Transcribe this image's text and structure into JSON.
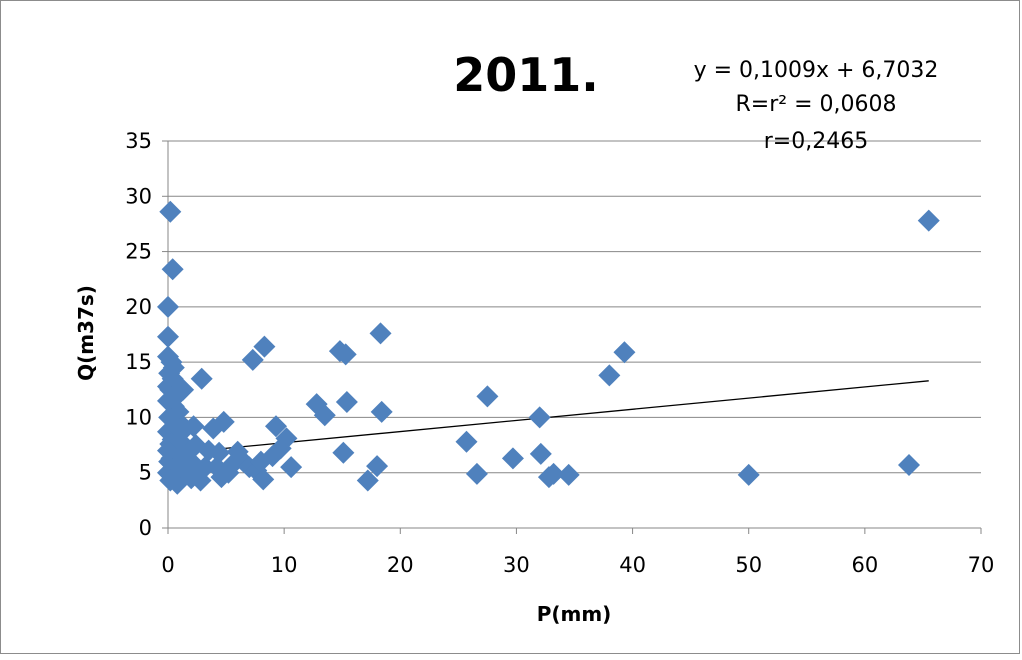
{
  "chart_data": {
    "type": "scatter",
    "title": "2011.",
    "xlabel": "P(mm)",
    "ylabel": "Q(m37s)",
    "xlim": [
      0,
      70
    ],
    "ylim": [
      0,
      35
    ],
    "x_ticks": [
      "0",
      "10",
      "20",
      "30",
      "40",
      "50",
      "60",
      "70"
    ],
    "y_ticks": [
      "0",
      "5",
      "10",
      "15",
      "20",
      "25",
      "30",
      "35"
    ],
    "grid": "horizontal",
    "legend": "none",
    "annotations": [
      "y = 0,1009x + 6,7032",
      "R=r² = 0,0608",
      "r=0,2465"
    ],
    "trendline": {
      "slope": 0.1009,
      "intercept": 6.7032,
      "x_range": [
        0,
        65.5
      ]
    },
    "marker_color": "#4f81bd",
    "points": [
      [
        0.2,
        28.6
      ],
      [
        0.4,
        23.4
      ],
      [
        0.0,
        20.0
      ],
      [
        0.0,
        17.3
      ],
      [
        0.0,
        15.5
      ],
      [
        0.3,
        15.0
      ],
      [
        0.5,
        14.5
      ],
      [
        0.1,
        14.0
      ],
      [
        0.4,
        13.5
      ],
      [
        0.7,
        13.0
      ],
      [
        0.2,
        12.5
      ],
      [
        0.8,
        12.0
      ],
      [
        0.0,
        11.5
      ],
      [
        0.5,
        11.0
      ],
      [
        0.9,
        10.5
      ],
      [
        0.1,
        10.0
      ],
      [
        0.6,
        9.5
      ],
      [
        0.3,
        9.0
      ],
      [
        0.0,
        8.7
      ],
      [
        0.8,
        8.3
      ],
      [
        0.4,
        8.0
      ],
      [
        0.2,
        7.6
      ],
      [
        0.9,
        7.3
      ],
      [
        0.0,
        7.0
      ],
      [
        0.6,
        6.7
      ],
      [
        0.3,
        6.3
      ],
      [
        0.1,
        6.0
      ],
      [
        0.7,
        5.7
      ],
      [
        0.4,
        5.3
      ],
      [
        0.0,
        5.0
      ],
      [
        0.5,
        4.6
      ],
      [
        0.2,
        4.3
      ],
      [
        0.8,
        4.0
      ],
      [
        0.0,
        12.8
      ],
      [
        0.3,
        11.8
      ],
      [
        0.6,
        9.9
      ],
      [
        1.0,
        8.9
      ],
      [
        1.0,
        7.9
      ],
      [
        1.1,
        6.5
      ],
      [
        1.1,
        5.5
      ],
      [
        1.3,
        12.5
      ],
      [
        1.5,
        9.0
      ],
      [
        1.6,
        7.0
      ],
      [
        1.8,
        5.5
      ],
      [
        2.0,
        6.0
      ],
      [
        2.0,
        4.5
      ],
      [
        2.2,
        9.2
      ],
      [
        2.4,
        7.5
      ],
      [
        2.6,
        5.0
      ],
      [
        2.8,
        4.3
      ],
      [
        2.9,
        13.5
      ],
      [
        3.2,
        5.5
      ],
      [
        3.5,
        7.0
      ],
      [
        3.9,
        9.0
      ],
      [
        4.2,
        5.5
      ],
      [
        4.4,
        6.8
      ],
      [
        4.6,
        4.6
      ],
      [
        4.8,
        9.6
      ],
      [
        5.2,
        5.0
      ],
      [
        5.6,
        5.8
      ],
      [
        6.0,
        6.9
      ],
      [
        6.5,
        6.0
      ],
      [
        7.0,
        5.5
      ],
      [
        7.3,
        15.2
      ],
      [
        7.6,
        5.2
      ],
      [
        8.0,
        6.0
      ],
      [
        8.3,
        16.4
      ],
      [
        8.2,
        4.4
      ],
      [
        9.0,
        6.5
      ],
      [
        9.3,
        9.2
      ],
      [
        9.7,
        7.2
      ],
      [
        10.2,
        8.1
      ],
      [
        10.6,
        5.5
      ],
      [
        12.8,
        11.2
      ],
      [
        13.5,
        10.2
      ],
      [
        14.8,
        16.0
      ],
      [
        15.3,
        15.7
      ],
      [
        15.1,
        6.8
      ],
      [
        15.4,
        11.4
      ],
      [
        17.2,
        4.3
      ],
      [
        18.0,
        5.6
      ],
      [
        18.3,
        17.6
      ],
      [
        18.4,
        10.5
      ],
      [
        25.7,
        7.8
      ],
      [
        26.6,
        4.9
      ],
      [
        27.5,
        11.9
      ],
      [
        29.7,
        6.3
      ],
      [
        32.0,
        10.0
      ],
      [
        32.1,
        6.7
      ],
      [
        32.8,
        4.6
      ],
      [
        33.2,
        4.9
      ],
      [
        34.5,
        4.8
      ],
      [
        38.0,
        13.8
      ],
      [
        39.3,
        15.9
      ],
      [
        50.0,
        4.8
      ],
      [
        63.8,
        5.7
      ],
      [
        65.5,
        27.8
      ]
    ]
  }
}
